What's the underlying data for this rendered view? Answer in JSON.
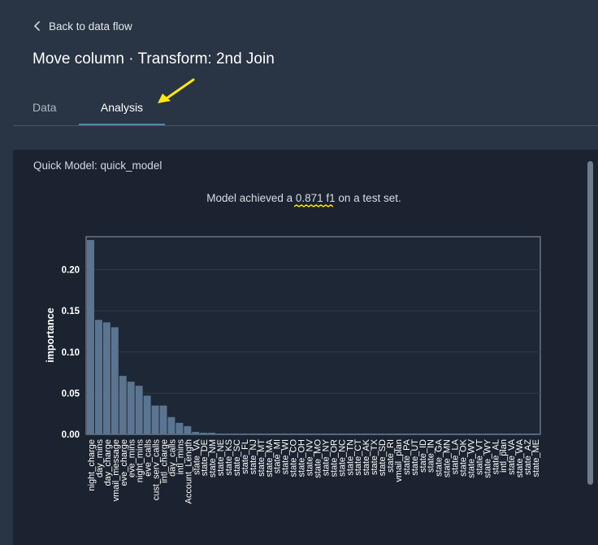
{
  "header": {
    "back_label": "Back to data flow",
    "title": "Move column · Transform: 2nd Join"
  },
  "tabs": [
    {
      "label": "Data",
      "active": false
    },
    {
      "label": "Analysis",
      "active": true
    }
  ],
  "annotation": {
    "arrow_color": "#ffea00"
  },
  "panel": {
    "title": "Quick Model: quick_model",
    "summary_prefix": "Model achieved a ",
    "summary_score": "0.871 f1",
    "summary_suffix": " on a test set."
  },
  "colors": {
    "background": "#293444",
    "panel": "#1b2330",
    "bar": "#5b7591",
    "accent": "#4e87ad",
    "highlight": "#ffea00"
  },
  "chart_data": {
    "type": "bar",
    "ylabel": "importance",
    "xlabel": "",
    "ylim": [
      0,
      0.24
    ],
    "yticks": [
      0.0,
      0.05,
      0.1,
      0.15,
      0.2
    ],
    "ytick_labels": [
      "0.00",
      "0.05",
      "0.10",
      "0.15",
      "0.20"
    ],
    "categories": [
      "night_charge",
      "day_mins",
      "day_charge",
      "vmail_message",
      "eve_charge",
      "eve_mins",
      "night_mins",
      "eve_calls",
      "cust_serv_calls",
      "intl_charge",
      "day_calls",
      "intl_mins",
      "Account_Length",
      "state_VA",
      "state_DE",
      "state_NM",
      "state_NE",
      "state_KS",
      "state_SC",
      "state_FL",
      "state_NJ",
      "state_MT",
      "state_MA",
      "state_MI",
      "state_WI",
      "state_CO",
      "state_OH",
      "state_NV",
      "state_MO",
      "state_NY",
      "state_OR",
      "state_NC",
      "state_TN",
      "state_CT",
      "state_AK",
      "state_TX",
      "state_SD",
      "state_RI",
      "vmail_plan",
      "state_PA",
      "state_UT",
      "state_ID",
      "state_IN",
      "state_GA",
      "state_MN",
      "state_LA",
      "state_OK",
      "state_WV",
      "state_VT",
      "state_WY",
      "state_AL",
      "intl_plan",
      "state_VA",
      "state_WA",
      "state_AZ",
      "state_ME"
    ],
    "values": [
      0.236,
      0.139,
      0.136,
      0.13,
      0.071,
      0.064,
      0.059,
      0.047,
      0.035,
      0.035,
      0.021,
      0.014,
      0.01,
      0.003,
      0.002,
      0.002,
      0.001,
      0.001,
      0.001,
      0.001,
      0.001,
      0.001,
      0.001,
      0.001,
      0.001,
      0.001,
      0.001,
      0.001,
      0.001,
      0.001,
      0.001,
      0.001,
      0.001,
      0.001,
      0.001,
      0.001,
      0.001,
      0.001,
      0.001,
      0.001,
      0.001,
      0.001,
      0.001,
      0.001,
      0.001,
      0.001,
      0.001,
      0.001,
      0.001,
      0.001,
      0.001,
      0.001,
      0.001,
      0.001,
      0.001,
      0.001
    ],
    "grid": true,
    "legend": "none"
  }
}
